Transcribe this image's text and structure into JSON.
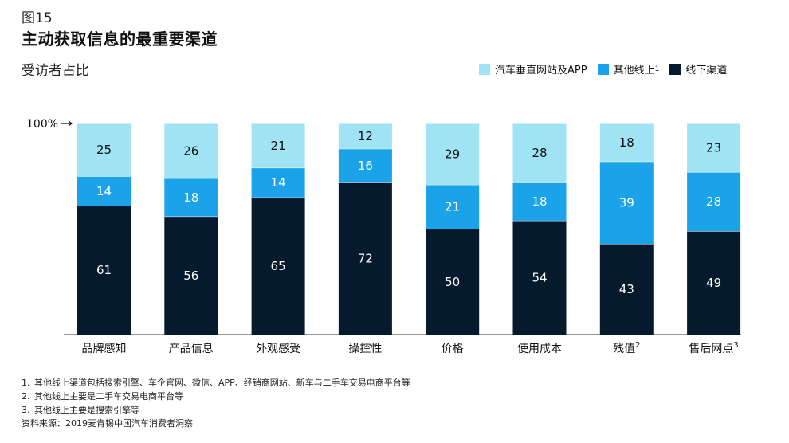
{
  "figure_label": "图15",
  "title": "主动获取信息的最重要渠道",
  "subtitle": "受访者占比",
  "legend": [
    {
      "label": "汽车垂直网站及APP",
      "sup": "",
      "color": "#9fe3f4"
    },
    {
      "label": "其他线上",
      "sup": "1",
      "color": "#1aa3e8"
    },
    {
      "label": "线下渠道",
      "sup": "",
      "color": "#061a2e"
    }
  ],
  "notes": [
    {
      "num": "1.",
      "text": "其他线上渠道包括搜索引擎、车企官网、微信、APP、经销商网站、新车与二手车交易电商平台等"
    },
    {
      "num": "2.",
      "text": "其他线上主要是二手车交易电商平台等"
    },
    {
      "num": "3.",
      "text": "其他线上主要是搜索引擎等"
    }
  ],
  "source": "资料来源：2019麦肯锡中国汽车消费者洞察",
  "chart_data": {
    "type": "bar",
    "stacked": true,
    "ylabel": "",
    "ylim": [
      0,
      100
    ],
    "y_marker": "100%",
    "categories": [
      {
        "label": "品牌感知",
        "sup": ""
      },
      {
        "label": "产品信息",
        "sup": ""
      },
      {
        "label": "外观感受",
        "sup": ""
      },
      {
        "label": "操控性",
        "sup": ""
      },
      {
        "label": "价格",
        "sup": ""
      },
      {
        "label": "使用成本",
        "sup": ""
      },
      {
        "label": "残值",
        "sup": "2"
      },
      {
        "label": "售后网点",
        "sup": "3"
      }
    ],
    "series": [
      {
        "name": "线下渠道",
        "color": "#061a2e",
        "text_color": "#ffffff",
        "values": [
          61,
          56,
          65,
          72,
          50,
          54,
          43,
          49
        ]
      },
      {
        "name": "其他线上",
        "color": "#1aa3e8",
        "text_color": "#ffffff",
        "values": [
          14,
          18,
          14,
          16,
          21,
          18,
          39,
          28
        ]
      },
      {
        "name": "汽车垂直网站及APP",
        "color": "#9fe3f4",
        "text_color": "#111111",
        "values": [
          25,
          26,
          21,
          12,
          29,
          28,
          18,
          23
        ]
      }
    ]
  }
}
